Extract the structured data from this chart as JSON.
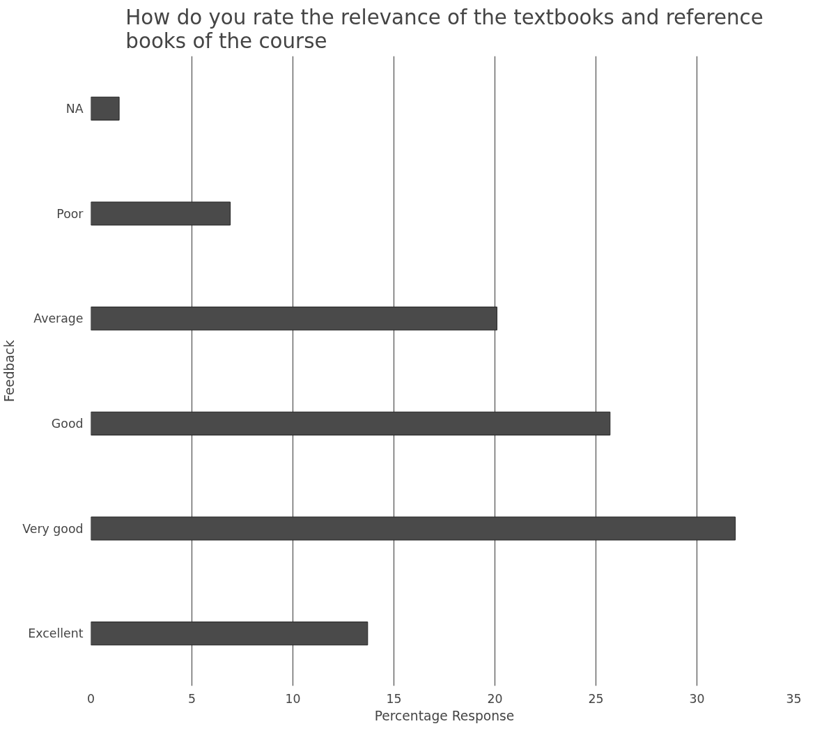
{
  "chart_data": {
    "type": "bar",
    "orientation": "horizontal",
    "title": "How do you rate the relevance of the textbooks and reference\nbooks of the course",
    "xlabel": "Percentage Response",
    "ylabel": "Feedback",
    "categories": [
      "NA",
      "Poor",
      "Average",
      "Good",
      "Very good",
      "Excellent"
    ],
    "values": [
      1.4,
      6.9,
      20.1,
      25.7,
      31.9,
      13.7
    ],
    "color": "#4a4a4a",
    "xlim": [
      0,
      35
    ],
    "xticks": [
      0,
      5,
      10,
      15,
      20,
      25,
      30,
      35
    ],
    "grid": "x"
  }
}
